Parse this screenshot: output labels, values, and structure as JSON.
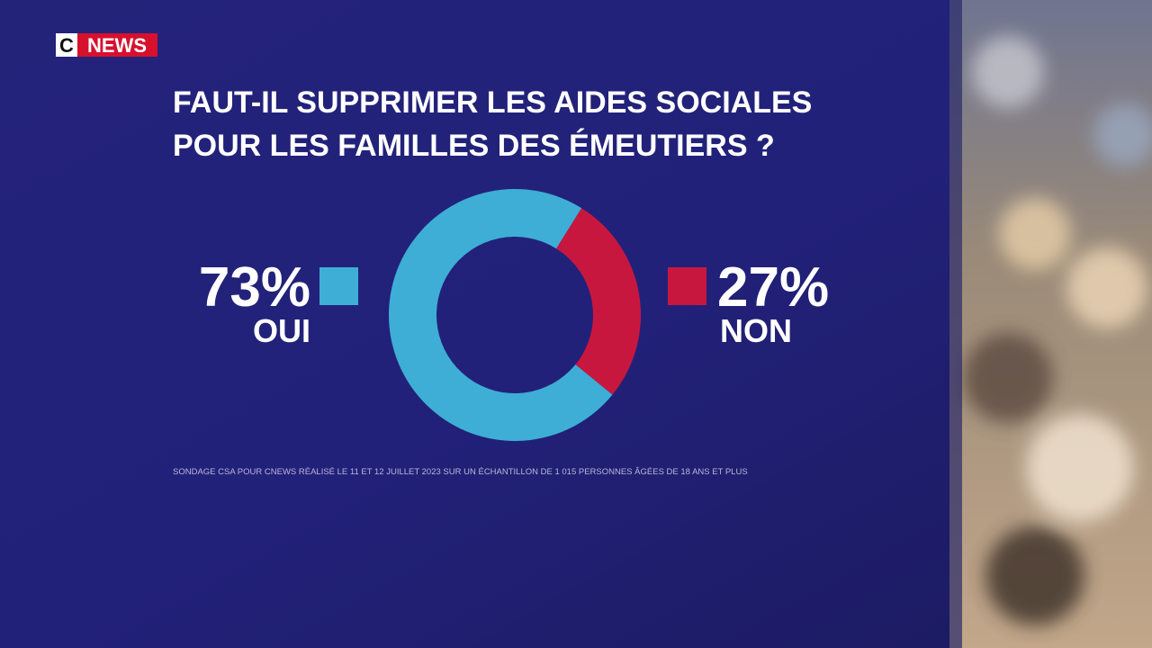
{
  "logo": {
    "c": "C",
    "news": "NEWS"
  },
  "chart_data": {
    "type": "donut",
    "title": [
      "FAUT-IL SUPPRIMER LES AIDES SOCIALES",
      "POUR LES FAMILLES DES ÉMEUTIERS ?"
    ],
    "categories": [
      "OUI",
      "NON"
    ],
    "values": [
      73,
      27
    ],
    "value_labels": [
      "73%",
      "27%"
    ],
    "colors": [
      "#3eaed6",
      "#c8173f"
    ],
    "source": "SONDAGE CSA POUR CNEWS RÉALISÉ LE 11 ET 12 JUILLET 2023 SUR UN ÉCHANTILLON DE 1 015 PERSONNES ÂGÉES DE 18 ANS ET PLUS"
  }
}
